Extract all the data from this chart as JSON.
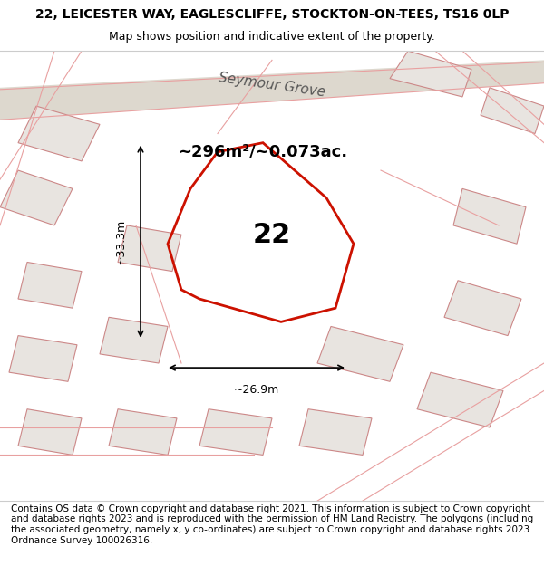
{
  "title_line1": "22, LEICESTER WAY, EAGLESCLIFFE, STOCKTON-ON-TEES, TS16 0LP",
  "title_line2": "Map shows position and indicative extent of the property.",
  "area_text": "~296m²/~0.073ac.",
  "house_number": "22",
  "width_label": "~26.9m",
  "height_label": "~33.3m",
  "footer_text": "Contains OS data © Crown copyright and database right 2021. This information is subject to Crown copyright and database rights 2023 and is reproduced with the permission of HM Land Registry. The polygons (including the associated geometry, namely x, y co-ordinates) are subject to Crown copyright and database rights 2023 Ordnance Survey 100026316.",
  "bg_color": "#f5f5f5",
  "map_bg": "#f0ede8",
  "road_color": "#d4d0c8",
  "highlight_color": "#e8a090",
  "plot_fill": "none",
  "plot_edge": "#cc2200",
  "building_fill": "#e8e4e0",
  "building_edge": "#cc8888",
  "street_label": "Seymour Grove",
  "title_fontsize": 10,
  "subtitle_fontsize": 9,
  "footer_fontsize": 7.5
}
